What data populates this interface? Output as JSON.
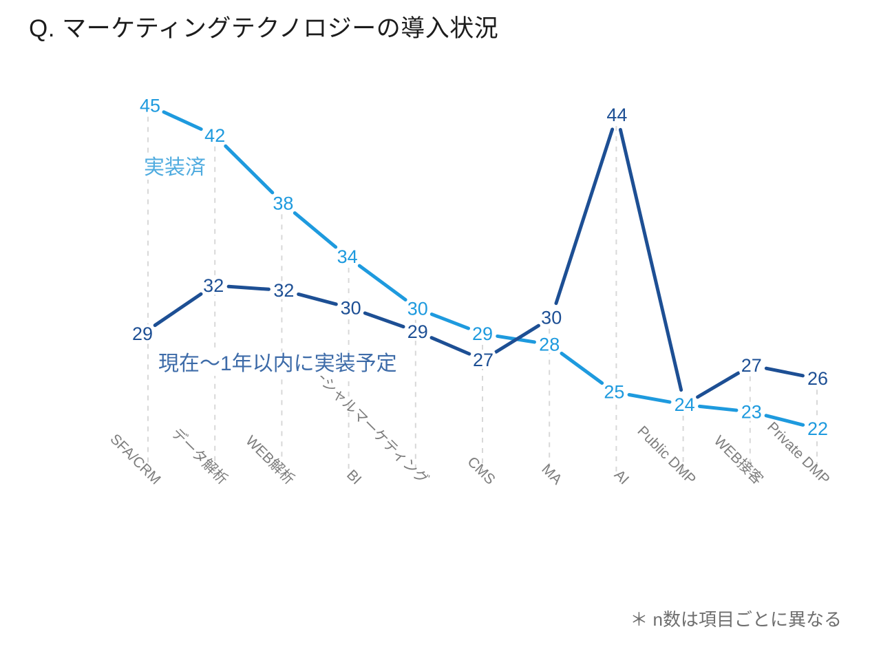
{
  "title": "Q. マーケティングテクノロジーの導入状況",
  "footnote": "＊ n数は項目ごとに異なる",
  "chart_data": {
    "type": "line",
    "categories": [
      "SFA/CRM",
      "データ解析",
      "WEB解析",
      "BI",
      "ソーシャルマーケティング",
      "CMS",
      "MA",
      "AI",
      "Public DMP",
      "WEB接客",
      "Private DMP"
    ],
    "series": [
      {
        "key": "implemented",
        "name": "実装済",
        "color": "#1e9ade",
        "name_color": "#4fabdf",
        "values": [
          45,
          42,
          38,
          34,
          30,
          29,
          28,
          25,
          24,
          23,
          22
        ]
      },
      {
        "key": "planned",
        "name": "現在〜1年以内に実装予定",
        "color": "#1d4f94",
        "name_color": "#3d6ba8",
        "values": [
          29,
          32,
          32,
          30,
          29,
          27,
          30,
          44,
          24,
          27,
          26
        ]
      }
    ],
    "ylim": [
      20,
      47
    ],
    "grid": "vertical-dashed",
    "grid_color": "#d8d8d8",
    "category_label_color": "#7d7d7d",
    "legend_position": "inline-labels",
    "data_labels": "on"
  }
}
